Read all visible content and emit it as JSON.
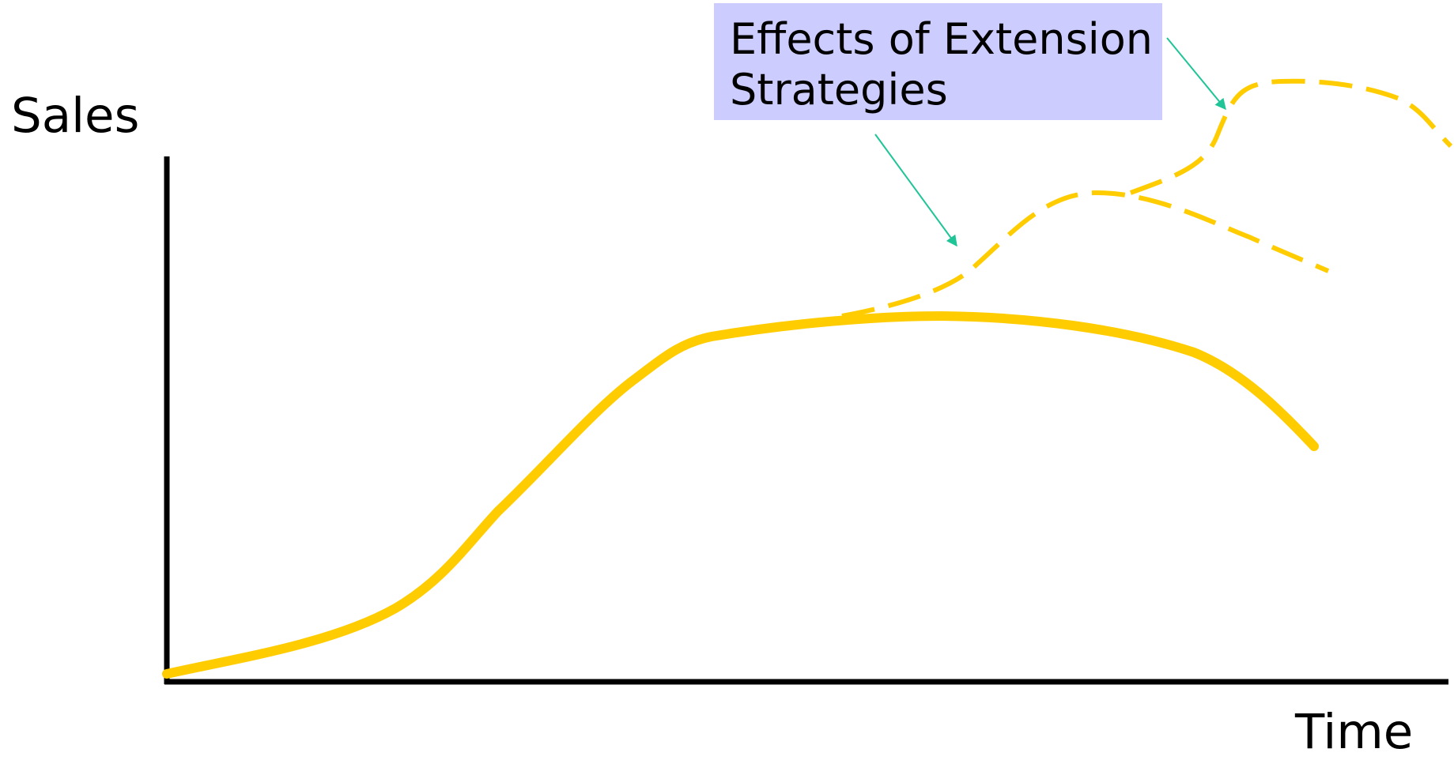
{
  "axes": {
    "y_label": "Sales",
    "x_label": "Time"
  },
  "callout": {
    "line1": "Effects of Extension",
    "line2": "Strategies"
  },
  "colors": {
    "curve": "#FFCC00",
    "axis": "#000000",
    "callout_bg": "#CCCCFF",
    "arrow": "#1FC497"
  },
  "curves": {
    "main": "solid",
    "extensions": "dashed"
  }
}
